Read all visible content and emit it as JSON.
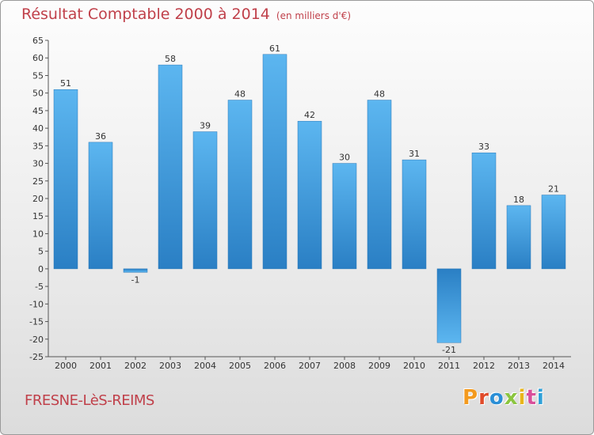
{
  "chart_data": {
    "type": "bar",
    "title": "Résultat Comptable 2000 à 2014",
    "unit_label": "(en milliers d'€)",
    "categories": [
      "2000",
      "2001",
      "2002",
      "2003",
      "2004",
      "2005",
      "2006",
      "2007",
      "2008",
      "2009",
      "2010",
      "2011",
      "2012",
      "2013",
      "2014"
    ],
    "values": [
      51,
      36,
      -1,
      58,
      39,
      48,
      61,
      42,
      30,
      48,
      31,
      -21,
      33,
      18,
      21
    ],
    "ylim": [
      -25,
      65
    ],
    "ytick_step": 5,
    "xlabel": "",
    "ylabel": "",
    "grid": false,
    "bar_color": "#4aa3e4"
  },
  "footer": {
    "commune": "FRESNE-LèS-REIMS",
    "logo": "Proxiti",
    "logo_colors": [
      "#f39a1e",
      "#e04b2a",
      "#2b8fd6",
      "#8bc53f",
      "#e8b51a",
      "#d94f9a",
      "#2ea0d8"
    ]
  }
}
